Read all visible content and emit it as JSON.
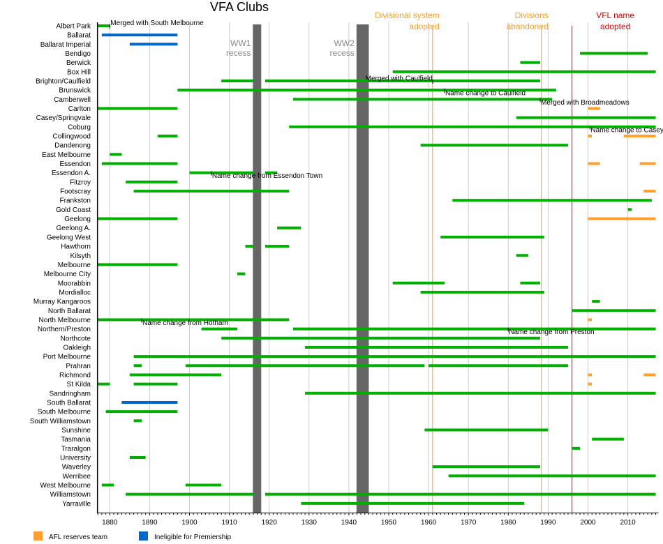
{
  "chart_data": {
    "type": "timeline",
    "title": "VFA Clubs",
    "xlim": [
      1877,
      2017
    ],
    "xticks": [
      1880,
      1890,
      1900,
      1910,
      1920,
      1930,
      1940,
      1950,
      1960,
      1970,
      1980,
      1990,
      2000,
      2010
    ],
    "grid": true,
    "colors": {
      "member": "#00b000",
      "afl_reserves": "#ff9f2f",
      "ineligible": "#0066cc",
      "recess": "#666666",
      "divisions": "#f0a030",
      "vfl": "#dd0000",
      "grid": "#cccccc"
    },
    "legend": {
      "position": "bottom-left",
      "items": [
        {
          "label": "AFL reserves team",
          "kind": "afl_reserves"
        },
        {
          "label": "Ineligible for Premiership",
          "kind": "ineligible"
        }
      ]
    },
    "recesses": [
      {
        "label": [
          "WW1",
          "recess"
        ],
        "start": 1916,
        "end": 1918
      },
      {
        "label": [
          "WW2",
          "recess"
        ],
        "start": 1942,
        "end": 1945
      }
    ],
    "events": [
      {
        "label": [
          "Divisional system",
          "adopted"
        ],
        "year": 1961,
        "kind": "divisions"
      },
      {
        "label": [
          "Divisions",
          "abandoned"
        ],
        "year": 1988.3,
        "kind": "divisions"
      },
      {
        "label": [
          "VFL name",
          "adopted"
        ],
        "year": 1996,
        "kind": "vfl"
      }
    ],
    "clubs": [
      {
        "name": "Albert Park",
        "bars": [
          {
            "s": 1877,
            "e": 1880,
            "k": "member"
          }
        ]
      },
      {
        "name": "Ballarat",
        "bars": [
          {
            "s": 1878,
            "e": 1897,
            "k": "ineligible"
          }
        ]
      },
      {
        "name": "Ballarat Imperial",
        "bars": [
          {
            "s": 1885,
            "e": 1897,
            "k": "ineligible"
          }
        ]
      },
      {
        "name": "Bendigo",
        "bars": [
          {
            "s": 1998,
            "e": 2015,
            "k": "member"
          }
        ]
      },
      {
        "name": "Berwick",
        "bars": [
          {
            "s": 1983,
            "e": 1988,
            "k": "member"
          }
        ]
      },
      {
        "name": "Box Hill",
        "bars": [
          {
            "s": 1951,
            "e": 2017,
            "k": "member"
          }
        ]
      },
      {
        "name": "Brighton/Caulfield",
        "bars": [
          {
            "s": 1908,
            "e": 1916,
            "k": "member"
          },
          {
            "s": 1919,
            "e": 1988,
            "k": "member"
          }
        ]
      },
      {
        "name": "Brunswick",
        "bars": [
          {
            "s": 1897,
            "e": 1992,
            "k": "member"
          }
        ]
      },
      {
        "name": "Camberwell",
        "bars": [
          {
            "s": 1926,
            "e": 1991,
            "k": "member"
          }
        ]
      },
      {
        "name": "Carlton",
        "bars": [
          {
            "s": 1877,
            "e": 1897,
            "k": "member"
          },
          {
            "s": 2000,
            "e": 2003,
            "k": "afl_reserves"
          }
        ]
      },
      {
        "name": "Casey/Springvale",
        "bars": [
          {
            "s": 1982,
            "e": 2017,
            "k": "member"
          }
        ]
      },
      {
        "name": "Coburg",
        "bars": [
          {
            "s": 1925,
            "e": 2017,
            "k": "member"
          }
        ]
      },
      {
        "name": "Collingwood",
        "bars": [
          {
            "s": 1892,
            "e": 1897,
            "k": "member"
          },
          {
            "s": 2000,
            "e": 2001,
            "k": "afl_reserves"
          },
          {
            "s": 2009,
            "e": 2017,
            "k": "afl_reserves"
          }
        ]
      },
      {
        "name": "Dandenong",
        "bars": [
          {
            "s": 1958,
            "e": 1995,
            "k": "member"
          }
        ]
      },
      {
        "name": "East Melbourne",
        "bars": [
          {
            "s": 1880,
            "e": 1883,
            "k": "member"
          }
        ]
      },
      {
        "name": "Essendon",
        "bars": [
          {
            "s": 1878,
            "e": 1897,
            "k": "member"
          },
          {
            "s": 2000,
            "e": 2003,
            "k": "afl_reserves"
          },
          {
            "s": 2013,
            "e": 2017,
            "k": "afl_reserves"
          }
        ]
      },
      {
        "name": "Essendon A.",
        "bars": [
          {
            "s": 1900,
            "e": 1916,
            "k": "member"
          },
          {
            "s": 1919,
            "e": 1922,
            "k": "member"
          }
        ]
      },
      {
        "name": "Fitzroy",
        "bars": [
          {
            "s": 1884,
            "e": 1897,
            "k": "member"
          }
        ]
      },
      {
        "name": "Footscray",
        "bars": [
          {
            "s": 1886,
            "e": 1925,
            "k": "member"
          },
          {
            "s": 2014,
            "e": 2017,
            "k": "afl_reserves"
          }
        ]
      },
      {
        "name": "Frankston",
        "bars": [
          {
            "s": 1966,
            "e": 2016,
            "k": "member"
          }
        ]
      },
      {
        "name": "Gold Coast",
        "bars": [
          {
            "s": 2010,
            "e": 2011,
            "k": "member"
          }
        ]
      },
      {
        "name": "Geelong",
        "bars": [
          {
            "s": 1877,
            "e": 1897,
            "k": "member"
          },
          {
            "s": 2000,
            "e": 2017,
            "k": "afl_reserves"
          }
        ]
      },
      {
        "name": "Geelong A.",
        "bars": [
          {
            "s": 1922,
            "e": 1928,
            "k": "member"
          }
        ]
      },
      {
        "name": "Geelong West",
        "bars": [
          {
            "s": 1963,
            "e": 1989,
            "k": "member"
          }
        ]
      },
      {
        "name": "Hawthorn",
        "bars": [
          {
            "s": 1914,
            "e": 1916,
            "k": "member"
          },
          {
            "s": 1919,
            "e": 1925,
            "k": "member"
          }
        ]
      },
      {
        "name": "Kilsyth",
        "bars": [
          {
            "s": 1982,
            "e": 1985,
            "k": "member"
          }
        ]
      },
      {
        "name": "Melbourne",
        "bars": [
          {
            "s": 1877,
            "e": 1897,
            "k": "member"
          }
        ]
      },
      {
        "name": "Melbourne City",
        "bars": [
          {
            "s": 1912,
            "e": 1914,
            "k": "member"
          }
        ]
      },
      {
        "name": "Moorabbin",
        "bars": [
          {
            "s": 1951,
            "e": 1964,
            "k": "member"
          },
          {
            "s": 1983,
            "e": 1988,
            "k": "member"
          }
        ]
      },
      {
        "name": "Mordialloc",
        "bars": [
          {
            "s": 1958,
            "e": 1989,
            "k": "member"
          }
        ]
      },
      {
        "name": "Murray Kangaroos",
        "bars": [
          {
            "s": 2001,
            "e": 2003,
            "k": "member"
          }
        ]
      },
      {
        "name": "North Ballarat",
        "bars": [
          {
            "s": 1996,
            "e": 2017,
            "k": "member"
          }
        ]
      },
      {
        "name": "North Melbourne",
        "bars": [
          {
            "s": 1877,
            "e": 1925,
            "k": "member"
          },
          {
            "s": 2000,
            "e": 2001,
            "k": "afl_reserves"
          }
        ]
      },
      {
        "name": "Northern/Preston",
        "bars": [
          {
            "s": 1903,
            "e": 1912,
            "k": "member"
          },
          {
            "s": 1926,
            "e": 2017,
            "k": "member"
          }
        ]
      },
      {
        "name": "Northcote",
        "bars": [
          {
            "s": 1908,
            "e": 1988,
            "k": "member"
          }
        ]
      },
      {
        "name": "Oakleigh",
        "bars": [
          {
            "s": 1929,
            "e": 1995,
            "k": "member"
          }
        ]
      },
      {
        "name": "Port Melbourne",
        "bars": [
          {
            "s": 1886,
            "e": 2017,
            "k": "member"
          }
        ]
      },
      {
        "name": "Prahran",
        "bars": [
          {
            "s": 1886,
            "e": 1888,
            "k": "member"
          },
          {
            "s": 1899,
            "e": 1959,
            "k": "member"
          },
          {
            "s": 1960,
            "e": 1995,
            "k": "member"
          }
        ]
      },
      {
        "name": "Richmond",
        "bars": [
          {
            "s": 1885,
            "e": 1908,
            "k": "member"
          },
          {
            "s": 2000,
            "e": 2001,
            "k": "afl_reserves"
          },
          {
            "s": 2014,
            "e": 2017,
            "k": "afl_reserves"
          }
        ]
      },
      {
        "name": "St Kilda",
        "bars": [
          {
            "s": 1877,
            "e": 1880,
            "k": "member"
          },
          {
            "s": 1886,
            "e": 1897,
            "k": "member"
          },
          {
            "s": 2000,
            "e": 2001,
            "k": "afl_reserves"
          }
        ]
      },
      {
        "name": "Sandringham",
        "bars": [
          {
            "s": 1929,
            "e": 2017,
            "k": "member"
          }
        ]
      },
      {
        "name": "South Ballarat",
        "bars": [
          {
            "s": 1883,
            "e": 1897,
            "k": "ineligible"
          }
        ]
      },
      {
        "name": "South Melbourne",
        "bars": [
          {
            "s": 1879,
            "e": 1897,
            "k": "member"
          }
        ]
      },
      {
        "name": "South Williamstown",
        "bars": [
          {
            "s": 1886,
            "e": 1888,
            "k": "member"
          }
        ]
      },
      {
        "name": "Sunshine",
        "bars": [
          {
            "s": 1959,
            "e": 1990,
            "k": "member"
          }
        ]
      },
      {
        "name": "Tasmania",
        "bars": [
          {
            "s": 2001,
            "e": 2009,
            "k": "member"
          }
        ]
      },
      {
        "name": "Traralgon",
        "bars": [
          {
            "s": 1996,
            "e": 1998,
            "k": "member"
          }
        ]
      },
      {
        "name": "University",
        "bars": [
          {
            "s": 1885,
            "e": 1889,
            "k": "member"
          }
        ]
      },
      {
        "name": "Waverley",
        "bars": [
          {
            "s": 1961,
            "e": 1988,
            "k": "member"
          }
        ]
      },
      {
        "name": "Werribee",
        "bars": [
          {
            "s": 1965,
            "e": 2017,
            "k": "member"
          }
        ]
      },
      {
        "name": "West Melbourne",
        "bars": [
          {
            "s": 1878,
            "e": 1881,
            "k": "member"
          },
          {
            "s": 1899,
            "e": 1908,
            "k": "member"
          }
        ]
      },
      {
        "name": "Williamstown",
        "bars": [
          {
            "s": 1884,
            "e": 1916,
            "k": "member"
          },
          {
            "s": 1919,
            "e": 2017,
            "k": "member"
          }
        ]
      },
      {
        "name": "Yarraville",
        "bars": [
          {
            "s": 1928,
            "e": 1984,
            "k": "member"
          }
        ]
      }
    ],
    "annotations": [
      {
        "text": "Merged with South Melbourne",
        "club": "Albert Park",
        "year": 1880
      },
      {
        "text": "Merged with Caulfield",
        "club": "Brighton/Caulfield",
        "year": 1961,
        "anchor": "end"
      },
      {
        "text": "Name change to Caulfield",
        "club": "Brunswick",
        "year": 1964
      },
      {
        "text": "Merged with Broadmeadows",
        "club": "Camberwell",
        "year": 1988
      },
      {
        "text": "Name change to Casey",
        "club": "Coburg",
        "year": 2000.5
      },
      {
        "text": "Name change from Essendon Town",
        "club": "Essendon A.",
        "year": 1905.5
      },
      {
        "text": "Name change from Hotham",
        "club": "North Melbourne",
        "year": 1888
      },
      {
        "text": "Name change from Preston",
        "club": "Northern/Preston",
        "year": 1980
      }
    ]
  }
}
